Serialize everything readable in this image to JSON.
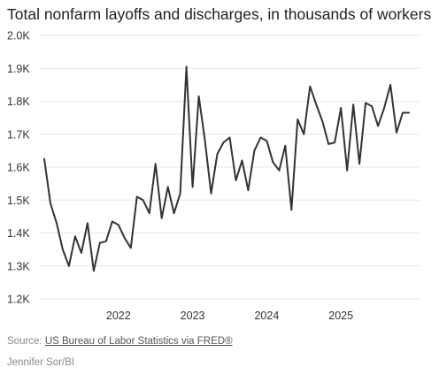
{
  "chart_data": {
    "type": "line",
    "title": "Total nonfarm layoffs and discharges, in thousands of workers",
    "xlabel": "",
    "ylabel": "",
    "y_ticks": [
      1200,
      1300,
      1400,
      1500,
      1600,
      1700,
      1800,
      1900,
      2000
    ],
    "y_tick_labels": [
      "1.2K",
      "1.3K",
      "1.4K",
      "1.5K",
      "1.6K",
      "1.7K",
      "1.8K",
      "1.9K",
      "2.0K"
    ],
    "ylim": [
      1200,
      2000
    ],
    "x_ticks": [
      "2022-01",
      "2023-01",
      "2024-01",
      "2025-01"
    ],
    "x_tick_labels": [
      "2022",
      "2023",
      "2024",
      "2025"
    ],
    "xlim": [
      "2021-01",
      "2025-12"
    ],
    "grid": "horizontal",
    "line_color": "#333333",
    "series": [
      {
        "x": [
          "2021-01",
          "2021-02",
          "2021-03",
          "2021-04",
          "2021-05",
          "2021-06",
          "2021-07",
          "2021-08",
          "2021-09",
          "2021-10",
          "2021-11",
          "2021-12",
          "2022-01",
          "2022-02",
          "2022-03",
          "2022-04",
          "2022-05",
          "2022-06",
          "2022-07",
          "2022-08",
          "2022-09",
          "2022-10",
          "2022-11",
          "2022-12",
          "2023-01",
          "2023-02",
          "2023-03",
          "2023-04",
          "2023-05",
          "2023-06",
          "2023-07",
          "2023-08",
          "2023-09",
          "2023-10",
          "2023-11",
          "2023-12",
          "2024-01",
          "2024-02",
          "2024-03",
          "2024-04",
          "2024-05",
          "2024-06",
          "2024-07",
          "2024-08",
          "2024-09",
          "2024-10",
          "2024-11",
          "2024-12",
          "2025-01",
          "2025-02",
          "2025-03",
          "2025-04",
          "2025-05",
          "2025-06",
          "2025-07",
          "2025-08",
          "2025-09",
          "2025-10",
          "2025-11",
          "2025-12"
        ],
        "values": [
          1625,
          1490,
          1430,
          1350,
          1300,
          1390,
          1340,
          1430,
          1285,
          1370,
          1375,
          1435,
          1425,
          1385,
          1355,
          1510,
          1500,
          1460,
          1610,
          1445,
          1540,
          1460,
          1520,
          1905,
          1540,
          1815,
          1680,
          1520,
          1640,
          1675,
          1690,
          1560,
          1620,
          1530,
          1650,
          1690,
          1680,
          1615,
          1590,
          1665,
          1470,
          1745,
          1700,
          1845,
          1790,
          1740,
          1670,
          1675,
          1780,
          1590,
          1790,
          1610,
          1795,
          1785,
          1725,
          1780,
          1850,
          1705,
          1765,
          1765
        ]
      }
    ]
  },
  "source": {
    "prefix": "Source: ",
    "link_text": "US Bureau of Labor Statistics via FRED®"
  },
  "credit": "Jennifer Sor/BI"
}
